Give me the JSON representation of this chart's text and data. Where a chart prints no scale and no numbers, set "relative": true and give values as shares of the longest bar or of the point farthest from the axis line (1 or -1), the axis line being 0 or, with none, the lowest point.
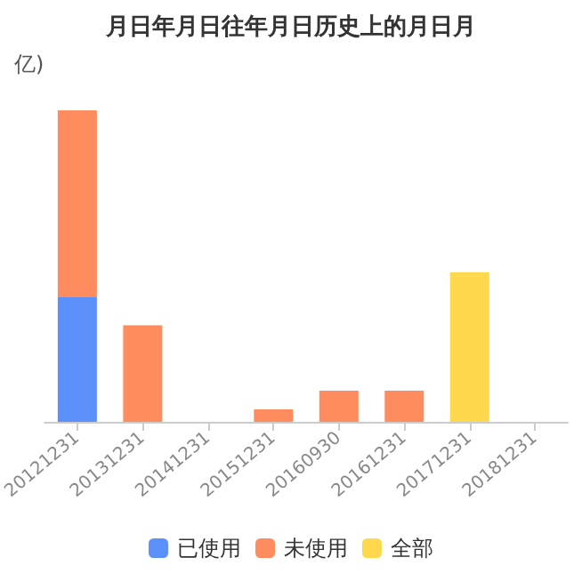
{
  "chart_data": {
    "type": "bar",
    "title": "月日年月日往年月日历史上的月日月",
    "ylabel": "亿)",
    "relative": true,
    "stacked": true,
    "legend": "bottom",
    "categories": [
      "20121231",
      "20131231",
      "20141231",
      "20151231",
      "20160930",
      "20161231",
      "20171231",
      "20181231"
    ],
    "series": [
      {
        "name": "已使用",
        "color": "#5b8ff9",
        "values": [
          0.4,
          null,
          null,
          null,
          null,
          null,
          null,
          null
        ]
      },
      {
        "name": "未使用",
        "color": "#ff8c5e",
        "values": [
          0.6,
          0.31,
          null,
          0.04,
          0.1,
          0.1,
          null,
          null
        ]
      },
      {
        "name": "全部",
        "color": "#ffd84d",
        "values": [
          null,
          null,
          null,
          null,
          null,
          null,
          0.48,
          null
        ]
      }
    ]
  }
}
